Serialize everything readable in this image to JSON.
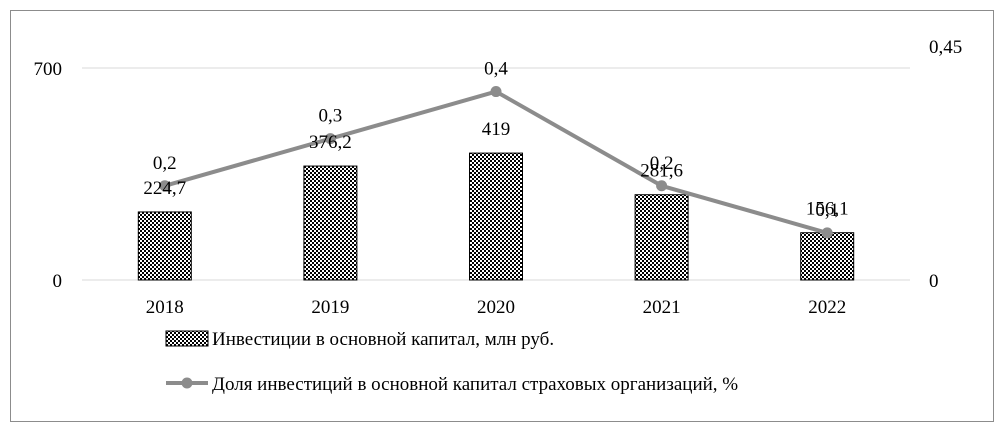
{
  "chart_data": {
    "type": "bar",
    "categories": [
      "2018",
      "2019",
      "2020",
      "2021",
      "2022"
    ],
    "series": [
      {
        "name": "Инвестиции в основной капитал, млн руб.",
        "type": "bar",
        "axis": "left",
        "values": [
          224.7,
          376.2,
          419,
          281.6,
          156.1
        ],
        "labels": [
          "224,7",
          "376,2",
          "419",
          "281,6",
          "156,1"
        ]
      },
      {
        "name": "Доля инвестиций в основной капитал страховых организаций, %",
        "type": "line",
        "axis": "right",
        "values": [
          0.2,
          0.3,
          0.4,
          0.2,
          0.1
        ],
        "labels": [
          "0,2",
          "0,3",
          "0,4",
          "0,2",
          "0,1"
        ]
      }
    ],
    "y_left": {
      "range": [
        0,
        700
      ],
      "tick_labels": [
        "0",
        "700"
      ]
    },
    "y_right": {
      "range": [
        0,
        0.45
      ],
      "tick_labels": [
        "0",
        "0,45"
      ]
    },
    "grid": true,
    "legend_position": "bottom",
    "colors": {
      "line": "#8c8c8c",
      "marker": "#8c8c8c",
      "bar_fill": "#000000",
      "bar_dot": "#ffffff",
      "grid": "#d9d9d9",
      "frame": "#8c8c8c"
    },
    "bar_pattern": "checker-dots"
  }
}
